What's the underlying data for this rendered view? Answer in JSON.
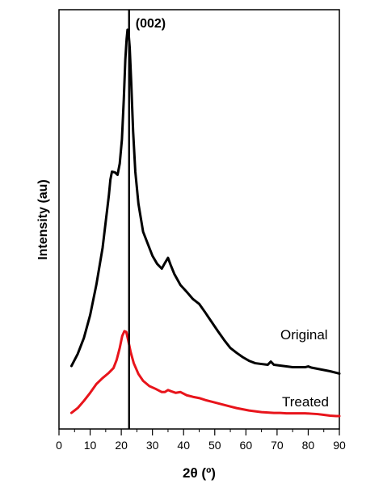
{
  "chart_data": {
    "type": "line",
    "xlabel": "2θ (º)",
    "ylabel": "Intensity (au)",
    "xlim": [
      0,
      90
    ],
    "x_ticks": [
      0,
      10,
      20,
      30,
      40,
      50,
      60,
      70,
      80,
      90
    ],
    "y_ticks": "none",
    "grid": false,
    "legend": "none",
    "annotations": [
      {
        "text": "(002)",
        "x": 22.5,
        "type": "vertical-line"
      }
    ],
    "series": [
      {
        "name": "Original",
        "color": "#000000",
        "points": [
          [
            4,
            0.135
          ],
          [
            6,
            0.165
          ],
          [
            8,
            0.205
          ],
          [
            10,
            0.262
          ],
          [
            12,
            0.338
          ],
          [
            14,
            0.43
          ],
          [
            15,
            0.495
          ],
          [
            16,
            0.56
          ],
          [
            16.5,
            0.6
          ],
          [
            17,
            0.62
          ],
          [
            18,
            0.618
          ],
          [
            18.8,
            0.612
          ],
          [
            19.5,
            0.64
          ],
          [
            20.2,
            0.7
          ],
          [
            20.8,
            0.8
          ],
          [
            21.3,
            0.9
          ],
          [
            21.7,
            0.95
          ],
          [
            22,
            0.974
          ],
          [
            22.3,
            0.97
          ],
          [
            22.7,
            0.93
          ],
          [
            23.2,
            0.84
          ],
          [
            23.8,
            0.72
          ],
          [
            24.5,
            0.62
          ],
          [
            25.5,
            0.54
          ],
          [
            27,
            0.47
          ],
          [
            28.5,
            0.44
          ],
          [
            30,
            0.41
          ],
          [
            31.5,
            0.39
          ],
          [
            33,
            0.378
          ],
          [
            34,
            0.392
          ],
          [
            35,
            0.405
          ],
          [
            35.8,
            0.388
          ],
          [
            37,
            0.365
          ],
          [
            39,
            0.337
          ],
          [
            41,
            0.32
          ],
          [
            43,
            0.302
          ],
          [
            45,
            0.29
          ],
          [
            47,
            0.268
          ],
          [
            49,
            0.245
          ],
          [
            51,
            0.222
          ],
          [
            53,
            0.2
          ],
          [
            55,
            0.18
          ],
          [
            57,
            0.168
          ],
          [
            59,
            0.157
          ],
          [
            61,
            0.148
          ],
          [
            63,
            0.142
          ],
          [
            65,
            0.14
          ],
          [
            67,
            0.138
          ],
          [
            68,
            0.146
          ],
          [
            69,
            0.138
          ],
          [
            71,
            0.136
          ],
          [
            73,
            0.134
          ],
          [
            75,
            0.132
          ],
          [
            77,
            0.132
          ],
          [
            79,
            0.132
          ],
          [
            80,
            0.134
          ],
          [
            81,
            0.131
          ],
          [
            83,
            0.128
          ],
          [
            85,
            0.125
          ],
          [
            87,
            0.122
          ],
          [
            89,
            0.118
          ],
          [
            90,
            0.116
          ]
        ]
      },
      {
        "name": "Treated",
        "color": "#e8141b",
        "points": [
          [
            4,
            0.018
          ],
          [
            6,
            0.03
          ],
          [
            8,
            0.048
          ],
          [
            10,
            0.068
          ],
          [
            12,
            0.09
          ],
          [
            14,
            0.105
          ],
          [
            16,
            0.118
          ],
          [
            17.5,
            0.13
          ],
          [
            18.5,
            0.15
          ],
          [
            19.5,
            0.18
          ],
          [
            20.3,
            0.21
          ],
          [
            21,
            0.222
          ],
          [
            21.6,
            0.22
          ],
          [
            22.2,
            0.2
          ],
          [
            23,
            0.17
          ],
          [
            24,
            0.142
          ],
          [
            25.5,
            0.115
          ],
          [
            27,
            0.098
          ],
          [
            29,
            0.085
          ],
          [
            31,
            0.078
          ],
          [
            33,
            0.07
          ],
          [
            34,
            0.07
          ],
          [
            35,
            0.075
          ],
          [
            36,
            0.072
          ],
          [
            37.5,
            0.068
          ],
          [
            39,
            0.07
          ],
          [
            41,
            0.062
          ],
          [
            43,
            0.058
          ],
          [
            45,
            0.055
          ],
          [
            47,
            0.05
          ],
          [
            49,
            0.046
          ],
          [
            51,
            0.042
          ],
          [
            53,
            0.038
          ],
          [
            55,
            0.034
          ],
          [
            57,
            0.03
          ],
          [
            59,
            0.027
          ],
          [
            61,
            0.024
          ],
          [
            63,
            0.022
          ],
          [
            65,
            0.02
          ],
          [
            67,
            0.019
          ],
          [
            69,
            0.018
          ],
          [
            71,
            0.018
          ],
          [
            73,
            0.017
          ],
          [
            75,
            0.017
          ],
          [
            77,
            0.017
          ],
          [
            79,
            0.017
          ],
          [
            81,
            0.016
          ],
          [
            83,
            0.015
          ],
          [
            85,
            0.013
          ],
          [
            87,
            0.011
          ],
          [
            89,
            0.01
          ],
          [
            90,
            0.01
          ]
        ]
      }
    ]
  },
  "labels": {
    "original": "Original",
    "treated": "Treated"
  }
}
